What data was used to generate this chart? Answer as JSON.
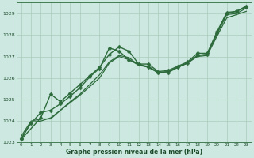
{
  "background_color": "#cce8e0",
  "grid_color": "#aaccbb",
  "line_color": "#2d6b3c",
  "text_color": "#1a4a28",
  "xlabel": "Graphe pression niveau de la mer (hPa)",
  "ylim": [
    1023.0,
    1029.5
  ],
  "xlim": [
    -0.5,
    23.5
  ],
  "yticks": [
    1023,
    1024,
    1025,
    1026,
    1027,
    1028,
    1029
  ],
  "xticks": [
    0,
    1,
    2,
    3,
    4,
    5,
    6,
    7,
    8,
    9,
    10,
    11,
    12,
    13,
    14,
    15,
    16,
    17,
    18,
    19,
    20,
    21,
    22,
    23
  ],
  "series": [
    {
      "x": [
        0,
        1,
        2,
        3,
        4,
        5,
        6,
        7,
        8,
        9,
        10,
        11,
        12,
        13,
        14,
        15,
        16,
        17,
        18,
        19,
        20,
        21,
        22,
        23
      ],
      "y": [
        1023.2,
        1023.9,
        1024.4,
        1024.5,
        1024.8,
        1025.15,
        1025.55,
        1026.05,
        1026.45,
        1027.4,
        1027.25,
        1026.85,
        1026.65,
        1026.65,
        1026.3,
        1026.35,
        1026.55,
        1026.75,
        1027.15,
        1027.15,
        1028.15,
        1029.05,
        1029.1,
        1029.35
      ],
      "marker": true,
      "linewidth": 1.0
    },
    {
      "x": [
        0,
        1,
        2,
        3,
        4,
        5,
        6,
        7,
        8,
        9,
        10,
        11,
        12,
        13,
        14,
        15,
        16,
        17,
        18,
        19,
        20,
        21,
        22,
        23
      ],
      "y": [
        1023.3,
        1024.0,
        1024.1,
        1024.1,
        1024.5,
        1024.9,
        1025.25,
        1025.7,
        1026.15,
        1026.75,
        1027.05,
        1026.95,
        1026.6,
        1026.55,
        1026.25,
        1026.3,
        1026.5,
        1026.7,
        1027.05,
        1027.1,
        1028.05,
        1028.95,
        1029.0,
        1029.25
      ],
      "marker": false,
      "linewidth": 0.9
    },
    {
      "x": [
        0,
        2,
        3,
        4,
        5,
        6,
        7,
        8,
        9,
        10,
        11,
        12,
        13,
        14,
        15,
        16,
        17,
        18,
        19,
        20,
        21,
        22,
        23
      ],
      "y": [
        1023.15,
        1024.15,
        1025.25,
        1024.9,
        1025.3,
        1025.7,
        1026.1,
        1026.5,
        1027.1,
        1027.45,
        1027.25,
        1026.65,
        1026.5,
        1026.25,
        1026.25,
        1026.5,
        1026.7,
        1027.05,
        1027.1,
        1028.1,
        1029.0,
        1029.1,
        1029.3
      ],
      "marker": true,
      "linewidth": 1.0
    },
    {
      "x": [
        0,
        1,
        2,
        3,
        4,
        5,
        6,
        7,
        8,
        9,
        10,
        11,
        12,
        13,
        14,
        15,
        16,
        17,
        18,
        19,
        20,
        21,
        22,
        23
      ],
      "y": [
        1023.15,
        1023.95,
        1024.0,
        1024.15,
        1024.5,
        1024.85,
        1025.2,
        1025.6,
        1026.0,
        1026.7,
        1027.0,
        1026.85,
        1026.6,
        1026.5,
        1026.25,
        1026.3,
        1026.5,
        1026.7,
        1027.0,
        1027.05,
        1027.95,
        1028.8,
        1028.95,
        1029.1
      ],
      "marker": false,
      "linewidth": 0.9
    }
  ],
  "marker_style": "D",
  "marker_size": 2.5
}
